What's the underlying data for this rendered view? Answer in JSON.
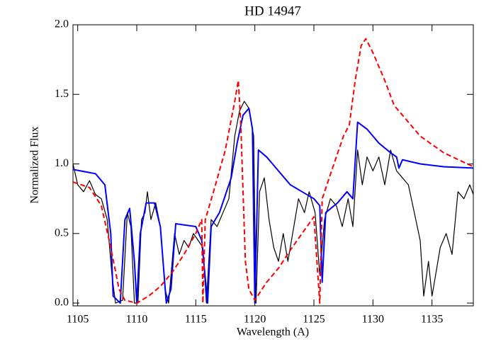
{
  "chart_data": {
    "type": "line",
    "title": "HD 14947",
    "x_label": "Wavelength (A)",
    "y_label": "Normalized Flux",
    "xlim": [
      1104.6,
      1138.5
    ],
    "ylim": [
      -0.02,
      2.0
    ],
    "xticks": [
      1105,
      1110,
      1115,
      1120,
      1125,
      1130,
      1135
    ],
    "yticks": [
      {
        "value": 0,
        "label": "0.0"
      },
      {
        "value": 0.5,
        "label": "0.5"
      },
      {
        "value": 1,
        "label": "1.0"
      },
      {
        "value": 1.5,
        "label": "1.5"
      },
      {
        "value": 2,
        "label": "2.0"
      }
    ],
    "series": [
      {
        "color": "#000000",
        "dash": false,
        "width": 1.2,
        "x": [
          1104.6,
          1105,
          1105.5,
          1106,
          1106.5,
          1107,
          1107.5,
          1107.9,
          1108.2,
          1108.8,
          1109.2,
          1109.5,
          1109.8,
          1110.1,
          1110.4,
          1110.7,
          1110.9,
          1111.2,
          1111.6,
          1112,
          1112.4,
          1112.7,
          1113.2,
          1113.6,
          1114,
          1114.4,
          1114.8,
          1115.2,
          1115.6,
          1115.9,
          1116.3,
          1116.8,
          1117.3,
          1117.8,
          1118.3,
          1118.7,
          1119.1,
          1119.5,
          1119.9,
          1120.1,
          1120.4,
          1120.8,
          1121.2,
          1121.6,
          1122,
          1122.4,
          1122.8,
          1123.3,
          1123.7,
          1124.2,
          1124.6,
          1125.1,
          1125.5,
          1125.9,
          1126.4,
          1126.9,
          1127.4,
          1127.9,
          1128.3,
          1128.7,
          1129.1,
          1129.5,
          1130,
          1130.5,
          1131,
          1131.5,
          1132,
          1132.5,
          1133,
          1133.5,
          1134,
          1134.3,
          1134.7,
          1135,
          1135.3,
          1135.7,
          1136.2,
          1136.7,
          1137.2,
          1137.7,
          1138.2,
          1138.5
        ],
        "values": [
          1.0,
          0.85,
          0.8,
          0.88,
          0.78,
          0.75,
          0.6,
          0.2,
          0.0,
          0.02,
          0.65,
          0.55,
          0.0,
          0.0,
          0.6,
          0.65,
          0.8,
          0.6,
          0.72,
          0.55,
          0.1,
          0.0,
          0.5,
          0.35,
          0.45,
          0.4,
          0.5,
          0.45,
          0.4,
          0.0,
          0.6,
          0.55,
          0.65,
          0.75,
          1.2,
          1.38,
          1.45,
          1.4,
          1.2,
          0.0,
          0.8,
          0.9,
          0.6,
          0.4,
          0.3,
          0.5,
          0.3,
          0.55,
          0.75,
          0.65,
          0.8,
          0.65,
          0.2,
          0.6,
          0.75,
          0.7,
          0.55,
          0.75,
          0.55,
          1.1,
          0.85,
          1.05,
          0.95,
          1.05,
          0.85,
          1.1,
          0.95,
          0.9,
          0.85,
          0.65,
          0.45,
          0.05,
          0.3,
          0.05,
          0.2,
          0.4,
          0.5,
          0.35,
          0.8,
          0.75,
          0.85,
          0.78
        ]
      },
      {
        "color": "#0000ff",
        "dash": false,
        "width": 2,
        "x": [
          1104.6,
          1106.5,
          1107.3,
          1107.8,
          1108,
          1108.6,
          1109,
          1109.4,
          1109.8,
          1110,
          1110.3,
          1110.8,
          1111.5,
          1112,
          1112.5,
          1112.9,
          1113.3,
          1115,
          1115.5,
          1116,
          1116.3,
          1117,
          1118,
          1118.5,
          1119,
          1119.5,
          1119.8,
          1120,
          1120.3,
          1121,
          1122,
          1123,
          1124,
          1125,
          1125.5,
          1125.7,
          1126,
          1127,
          1127.8,
          1128.3,
          1128.7,
          1129.5,
          1130.5,
          1131.5,
          1132,
          1132.2,
          1132.5,
          1134,
          1136,
          1138.5
        ],
        "values": [
          0.96,
          0.93,
          0.85,
          0.5,
          0.05,
          0.0,
          0.6,
          0.68,
          0.3,
          0.0,
          0.5,
          0.72,
          0.72,
          0.55,
          0.0,
          0.1,
          0.57,
          0.55,
          0.45,
          0.0,
          0.55,
          0.65,
          0.9,
          1.15,
          1.35,
          1.4,
          1.25,
          0.0,
          1.1,
          1.05,
          0.95,
          0.85,
          0.8,
          0.75,
          0.7,
          0.15,
          0.65,
          0.72,
          0.8,
          0.75,
          1.3,
          1.25,
          1.15,
          1.08,
          1.05,
          0.97,
          1.03,
          1.0,
          0.98,
          0.97
        ]
      },
      {
        "color": "#ff0000",
        "dash": true,
        "width": 2,
        "x": [
          1104.6,
          1106,
          1107,
          1107.8,
          1108.5,
          1109,
          1110,
          1111,
          1112,
          1113,
          1114,
          1115,
          1115.5,
          1115.6,
          1115.8,
          1116.5,
          1117.5,
          1118.3,
          1118.6,
          1118.8,
          1119.2,
          1119.5,
          1120,
          1121,
          1122,
          1123,
          1124,
          1125,
          1125.5,
          1125.7,
          1126.5,
          1127.5,
          1128,
          1128.5,
          1129,
          1129.4,
          1130,
          1131,
          1131.8,
          1132.5,
          1134,
          1136,
          1138.5
        ],
        "values": [
          0.87,
          0.83,
          0.7,
          0.4,
          0.1,
          0.02,
          0.0,
          0.05,
          0.12,
          0.22,
          0.35,
          0.5,
          0.6,
          0.0,
          0.6,
          0.8,
          1.1,
          1.45,
          1.6,
          1.3,
          0.3,
          0.1,
          0.02,
          0.15,
          0.25,
          0.38,
          0.5,
          0.62,
          0.0,
          0.75,
          0.95,
          1.2,
          1.28,
          1.6,
          1.85,
          1.9,
          1.8,
          1.6,
          1.42,
          1.35,
          1.2,
          1.08,
          0.98
        ]
      }
    ]
  }
}
